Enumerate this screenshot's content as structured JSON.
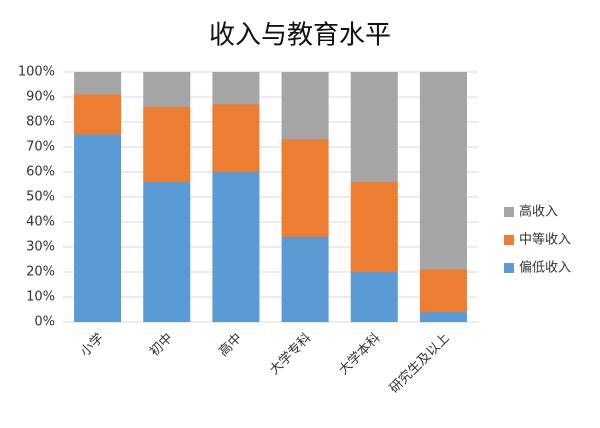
{
  "chart_data": {
    "type": "bar",
    "stacked": true,
    "title": "收入与教育水平",
    "categories": [
      "小学",
      "初中",
      "高中",
      "大学专科",
      "大学本科",
      "研究生及以上"
    ],
    "series": [
      {
        "name": "偏低收入",
        "color": "#5b9bd5",
        "values": [
          75,
          56,
          60,
          34,
          20,
          4
        ]
      },
      {
        "name": "中等收入",
        "color": "#ed7d31",
        "values": [
          16,
          30,
          27,
          39,
          36,
          17
        ]
      },
      {
        "name": "高收入",
        "color": "#a5a5a5",
        "values": [
          9,
          14,
          13,
          27,
          44,
          79
        ]
      }
    ],
    "ylim": [
      0,
      100
    ],
    "yticks": [
      {
        "value": 0,
        "label": "0%"
      },
      {
        "value": 10,
        "label": "10%"
      },
      {
        "value": 20,
        "label": "20%"
      },
      {
        "value": 30,
        "label": "30%"
      },
      {
        "value": 40,
        "label": "40%"
      },
      {
        "value": 50,
        "label": "50%"
      },
      {
        "value": 60,
        "label": "60%"
      },
      {
        "value": 70,
        "label": "70%"
      },
      {
        "value": 80,
        "label": "80%"
      },
      {
        "value": 90,
        "label": "90%"
      },
      {
        "value": 100,
        "label": "100%"
      }
    ],
    "grid": true,
    "legend": "right"
  }
}
